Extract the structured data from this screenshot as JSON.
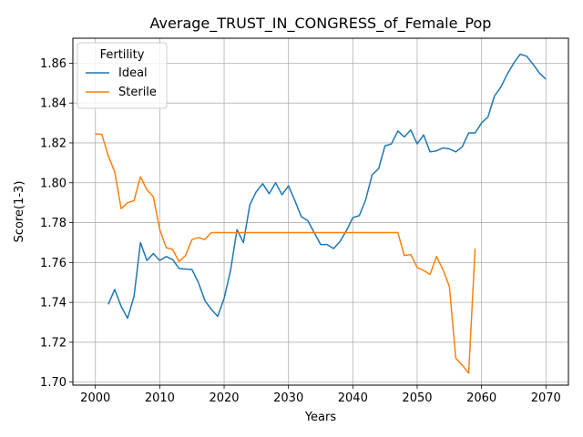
{
  "chart_data": {
    "type": "line",
    "title": "Average_TRUST_IN_CONGRESS_of_Female_Pop",
    "xlabel": "Years",
    "ylabel": "Score(1-3)",
    "xlim": [
      1996.5,
      2073.5
    ],
    "ylim": [
      1.6985,
      1.8725
    ],
    "xticks": [
      2000,
      2010,
      2020,
      2030,
      2040,
      2050,
      2060,
      2070
    ],
    "yticks": [
      1.7,
      1.72,
      1.74,
      1.76,
      1.78,
      1.8,
      1.82,
      1.84,
      1.86
    ],
    "ytick_labels": [
      "1.70",
      "1.72",
      "1.74",
      "1.76",
      "1.78",
      "1.80",
      "1.82",
      "1.84",
      "1.86"
    ],
    "grid": true,
    "legend": {
      "title": "Fertility",
      "position": "top-left"
    },
    "series": [
      {
        "name": "Ideal",
        "color": "#1f77b4",
        "x": [
          2002,
          2003,
          2004,
          2005,
          2006,
          2007,
          2008,
          2009,
          2010,
          2011,
          2012,
          2013,
          2014,
          2015,
          2016,
          2017,
          2018,
          2019,
          2020,
          2021,
          2022,
          2023,
          2024,
          2025,
          2026,
          2027,
          2028,
          2029,
          2030,
          2031,
          2032,
          2033,
          2034,
          2035,
          2036,
          2037,
          2038,
          2039,
          2040,
          2041,
          2042,
          2043,
          2044,
          2045,
          2046,
          2047,
          2048,
          2049,
          2050,
          2051,
          2052,
          2053,
          2054,
          2055,
          2056,
          2057,
          2058,
          2059,
          2060,
          2061,
          2062,
          2063,
          2064,
          2065,
          2066,
          2067,
          2068,
          2069,
          2070
        ],
        "y": [
          1.739,
          1.7465,
          1.738,
          1.732,
          1.743,
          1.77,
          1.761,
          1.7645,
          1.761,
          1.763,
          1.7615,
          1.757,
          1.7567,
          1.7565,
          1.75,
          1.741,
          1.7365,
          1.733,
          1.742,
          1.756,
          1.7765,
          1.77,
          1.789,
          1.7955,
          1.7995,
          1.7945,
          1.8,
          1.794,
          1.7985,
          1.791,
          1.783,
          1.781,
          1.775,
          1.769,
          1.769,
          1.767,
          1.7705,
          1.776,
          1.7825,
          1.7835,
          1.7915,
          1.804,
          1.807,
          1.8185,
          1.8195,
          1.826,
          1.823,
          1.8265,
          1.8195,
          1.824,
          1.8155,
          1.816,
          1.8175,
          1.817,
          1.8155,
          1.818,
          1.825,
          1.825,
          1.83,
          1.833,
          1.8435,
          1.848,
          1.8545,
          1.86,
          1.8645,
          1.8635,
          1.8595,
          1.855,
          1.852
        ]
      },
      {
        "name": "Sterile",
        "color": "#ff7f0e",
        "x": [
          2000,
          2001,
          2002,
          2003,
          2004,
          2005,
          2006,
          2007,
          2008,
          2009,
          2010,
          2011,
          2012,
          2013,
          2014,
          2015,
          2016,
          2017,
          2018,
          2019,
          2020,
          2021,
          2022,
          2023,
          2024,
          2025,
          2026,
          2027,
          2028,
          2029,
          2030,
          2031,
          2032,
          2033,
          2034,
          2035,
          2036,
          2037,
          2038,
          2039,
          2040,
          2041,
          2042,
          2043,
          2044,
          2045,
          2046,
          2047,
          2048,
          2049,
          2050,
          2051,
          2052,
          2053,
          2054,
          2055,
          2056,
          2057,
          2058,
          2059
        ],
        "y": [
          1.8245,
          1.8243,
          1.8135,
          1.8055,
          1.787,
          1.79,
          1.791,
          1.803,
          1.7965,
          1.793,
          1.7765,
          1.7675,
          1.7665,
          1.7605,
          1.7635,
          1.7715,
          1.7725,
          1.7715,
          1.775,
          1.775,
          1.775,
          1.775,
          1.775,
          1.775,
          1.775,
          1.775,
          1.775,
          1.775,
          1.775,
          1.775,
          1.775,
          1.775,
          1.775,
          1.775,
          1.775,
          1.775,
          1.775,
          1.775,
          1.775,
          1.775,
          1.775,
          1.775,
          1.775,
          1.775,
          1.775,
          1.775,
          1.775,
          1.775,
          1.7635,
          1.764,
          1.7575,
          1.756,
          1.754,
          1.763,
          1.7565,
          1.748,
          1.712,
          1.7085,
          1.7045,
          1.767
        ]
      }
    ]
  }
}
